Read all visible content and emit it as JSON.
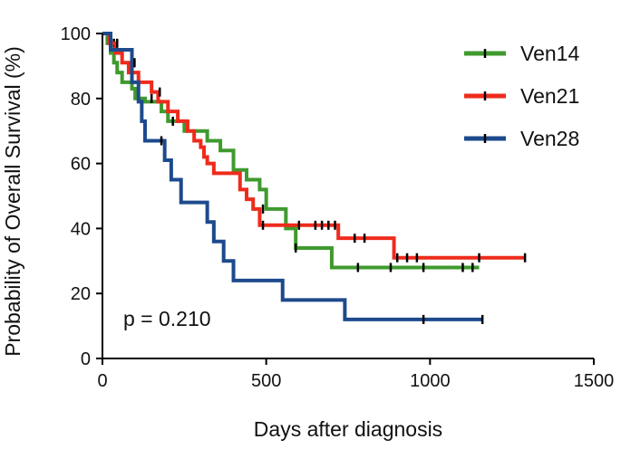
{
  "chart_data": {
    "type": "line",
    "subtype": "kaplan-meier",
    "xlabel": "Days after diagnosis",
    "ylabel": "Probability of Overall Survival (%)",
    "xlim": [
      0,
      1500
    ],
    "ylim": [
      0,
      100
    ],
    "xticks": [
      0,
      500,
      1000,
      1500
    ],
    "yticks": [
      0,
      20,
      40,
      60,
      80,
      100
    ],
    "xtick_labels": [
      "0",
      "500",
      "1000",
      "1500"
    ],
    "ytick_labels": [
      "0",
      "20",
      "40",
      "60",
      "80",
      "100"
    ],
    "grid": false,
    "legend_position": "top-right",
    "annotation": "p = 0.210",
    "series": [
      {
        "name": "Ven14",
        "color": "#3f9a2e",
        "x": [
          0,
          15,
          25,
          35,
          45,
          60,
          90,
          100,
          130,
          180,
          200,
          250,
          320,
          360,
          400,
          440,
          480,
          500,
          560,
          590,
          700,
          1150
        ],
        "y": [
          100,
          97,
          94,
          91,
          88,
          85,
          83,
          80,
          79,
          76,
          73,
          70,
          67,
          64,
          58,
          55,
          52,
          46,
          40,
          34,
          28,
          28
        ],
        "censor_x": [
          35,
          95,
          150,
          490,
          590,
          780,
          880,
          980,
          1100,
          1130
        ],
        "censor_y": [
          97,
          91,
          80,
          46,
          34,
          28,
          28,
          28,
          28,
          28
        ]
      },
      {
        "name": "Ven21",
        "color": "#ee2b1d",
        "x": [
          0,
          20,
          40,
          60,
          80,
          110,
          150,
          170,
          200,
          230,
          260,
          280,
          300,
          310,
          320,
          340,
          420,
          440,
          460,
          480,
          720,
          890,
          1290
        ],
        "y": [
          100,
          97,
          94,
          91,
          88,
          85,
          82,
          79,
          76,
          73,
          70,
          67,
          65,
          62,
          60,
          57,
          52,
          49,
          46,
          41,
          37,
          31,
          31
        ],
        "censor_x": [
          45,
          175,
          215,
          490,
          600,
          650,
          670,
          690,
          710,
          770,
          800,
          900,
          930,
          960,
          1150,
          1290
        ],
        "censor_y": [
          97,
          82,
          73,
          41,
          41,
          41,
          41,
          41,
          41,
          37,
          37,
          31,
          31,
          31,
          31,
          31
        ],
        "censor_count": 16
      },
      {
        "name": "Ven28",
        "color": "#1d4a8c",
        "x": [
          0,
          25,
          90,
          110,
          120,
          130,
          190,
          210,
          240,
          320,
          340,
          370,
          400,
          550,
          740,
          1160
        ],
        "y": [
          100,
          95,
          85,
          79,
          73,
          67,
          61,
          55,
          48,
          42,
          36,
          30,
          24,
          18,
          12,
          12
        ],
        "censor_x": [
          98,
          180,
          980,
          1160
        ],
        "censor_y": [
          91,
          67,
          12,
          12
        ]
      }
    ]
  }
}
